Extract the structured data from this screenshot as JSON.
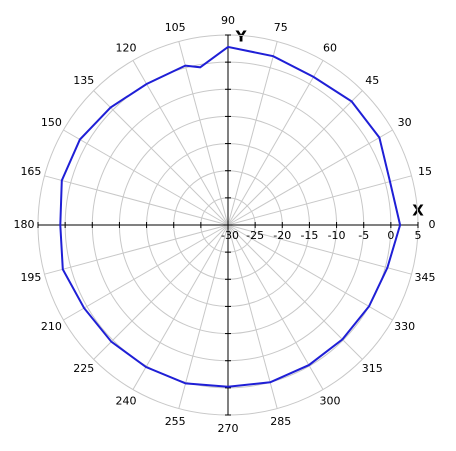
{
  "chart_data": {
    "type": "polar",
    "xlabel": "X",
    "ylabel": "Y",
    "angles": [
      0,
      15,
      30,
      45,
      60,
      75,
      90,
      100,
      105,
      120,
      135,
      150,
      165,
      180,
      195,
      210,
      225,
      240,
      255,
      270,
      285,
      300,
      315,
      330,
      345
    ],
    "values": [
      1.7,
      0.9,
      2.2,
      2.2,
      1.5,
      2.2,
      2.8,
      -0.5,
      0.4,
      0.0,
      0.6,
      1.5,
      1.7,
      0.9,
      1.5,
      0.6,
      0.4,
      0.2,
      0.2,
      -0.2,
      0.0,
      -0.2,
      -0.2,
      0.0,
      0.4
    ],
    "color": "#1f1fd6",
    "rlim": [
      -30,
      5
    ],
    "rticks": [
      -30,
      -25,
      -20,
      -15,
      -10,
      -5,
      0,
      5
    ],
    "thetaticks": [
      0,
      15,
      30,
      45,
      60,
      75,
      90,
      105,
      120,
      135,
      150,
      165,
      180,
      195,
      210,
      225,
      240,
      255,
      270,
      285,
      300,
      315,
      330,
      345
    ],
    "grid": true
  }
}
